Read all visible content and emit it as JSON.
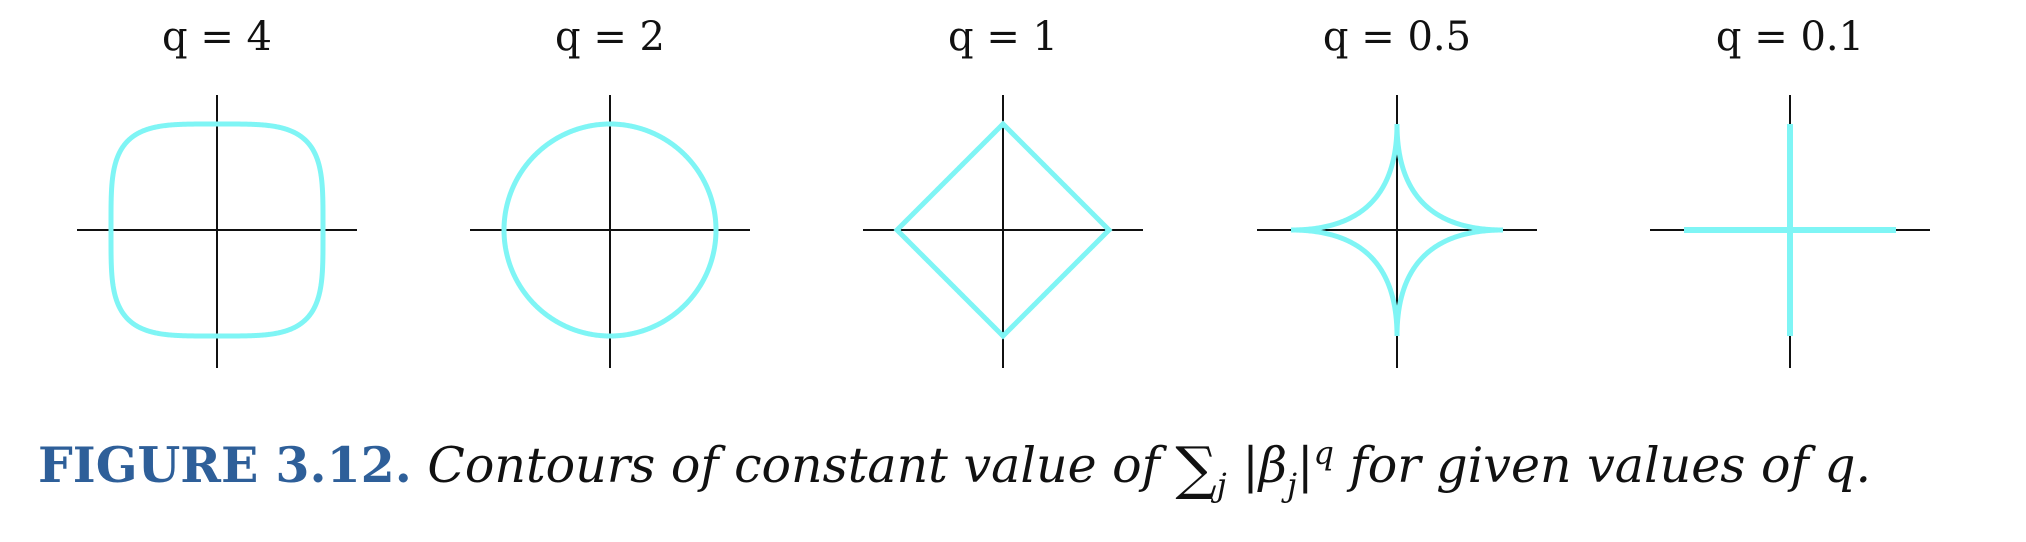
{
  "figure": {
    "panels": [
      {
        "label": "q = 4",
        "q": 4
      },
      {
        "label": "q = 2",
        "q": 2
      },
      {
        "label": "q = 1",
        "q": 1
      },
      {
        "label": "q = 0.5",
        "q": 0.5
      },
      {
        "label": "q = 0.1",
        "q": 0.1
      }
    ],
    "contour_color": "#7ff5f5",
    "axis_color": "#111111"
  },
  "caption": {
    "label": "FIGURE 3.12.",
    "text_before": "Contours of constant value of",
    "sum_symbol": "∑",
    "sum_index": "j",
    "term_open": "|β",
    "term_sub": "j",
    "term_close": "|",
    "term_power": "q",
    "text_after": "for given values of",
    "text_var": "q",
    "label_color": "#2e5f99"
  }
}
